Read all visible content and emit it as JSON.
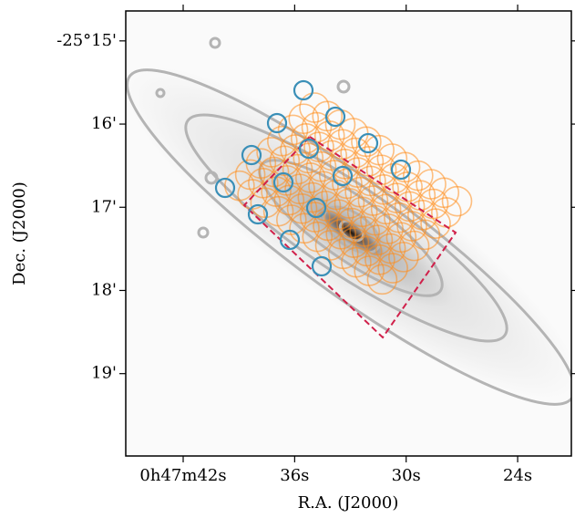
{
  "chart_data": {
    "type": "sky-map",
    "xlabel": "R.A. (J2000)",
    "ylabel": "Dec. (J2000)",
    "xlim": [
      45.09,
      21.11
    ],
    "ylim": [
      14.64,
      19.99
    ],
    "xticks": [
      {
        "value": 42,
        "label": "0h47m42s"
      },
      {
        "value": 36,
        "label": "36s"
      },
      {
        "value": 30,
        "label": "30s"
      },
      {
        "value": 24,
        "label": "24s"
      }
    ],
    "yticks": [
      {
        "value": 15,
        "label": "-25°15'"
      },
      {
        "value": 16,
        "label": "16'"
      },
      {
        "value": 17,
        "label": "17'"
      },
      {
        "value": 18,
        "label": "18'"
      },
      {
        "value": 19,
        "label": "19'"
      }
    ]
  }
}
